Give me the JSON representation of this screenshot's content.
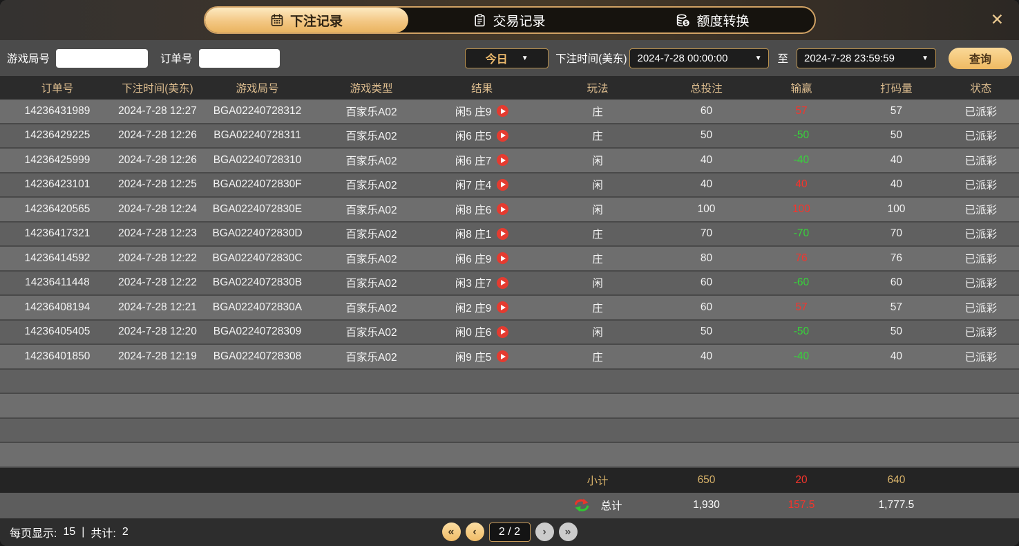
{
  "window": {
    "close_glyph": "✕"
  },
  "tabs": [
    {
      "label": "下注记录",
      "icon": "calendar-icon",
      "active": true
    },
    {
      "label": "交易记录",
      "icon": "clipboard-icon",
      "active": false
    },
    {
      "label": "额度转换",
      "icon": "coins-icon",
      "active": false
    }
  ],
  "filters": {
    "game_round_label": "游戏局号",
    "order_no_label": "订单号",
    "game_round_value": "",
    "order_no_value": "",
    "preset_value": "今日",
    "bet_time_label": "下注时间(美东)",
    "time_from": "2024-7-28 00:00:00",
    "to_label": "至",
    "time_to": "2024-7-28 23:59:59",
    "query_label": "查询",
    "dropdown_glyph": "▼"
  },
  "table": {
    "headers": [
      "订单号",
      "下注时间(美东)",
      "游戏局号",
      "游戏类型",
      "结果",
      "玩法",
      "总投注",
      "输赢",
      "打码量",
      "状态"
    ],
    "rows": [
      {
        "order_no": "14236431989",
        "bet_time": "2024-7-28 12:27",
        "round": "BGA02240728312",
        "game_type": "百家乐A02",
        "result": "闲5 庄9",
        "play": "庄",
        "total_bet": "60",
        "win_loss": "57",
        "turnover": "57",
        "status": "已派彩"
      },
      {
        "order_no": "14236429225",
        "bet_time": "2024-7-28 12:26",
        "round": "BGA02240728311",
        "game_type": "百家乐A02",
        "result": "闲6 庄5",
        "play": "庄",
        "total_bet": "50",
        "win_loss": "-50",
        "turnover": "50",
        "status": "已派彩"
      },
      {
        "order_no": "14236425999",
        "bet_time": "2024-7-28 12:26",
        "round": "BGA02240728310",
        "game_type": "百家乐A02",
        "result": "闲6 庄7",
        "play": "闲",
        "total_bet": "40",
        "win_loss": "-40",
        "turnover": "40",
        "status": "已派彩"
      },
      {
        "order_no": "14236423101",
        "bet_time": "2024-7-28 12:25",
        "round": "BGA0224072830F",
        "game_type": "百家乐A02",
        "result": "闲7 庄4",
        "play": "闲",
        "total_bet": "40",
        "win_loss": "40",
        "turnover": "40",
        "status": "已派彩"
      },
      {
        "order_no": "14236420565",
        "bet_time": "2024-7-28 12:24",
        "round": "BGA0224072830E",
        "game_type": "百家乐A02",
        "result": "闲8 庄6",
        "play": "闲",
        "total_bet": "100",
        "win_loss": "100",
        "turnover": "100",
        "status": "已派彩"
      },
      {
        "order_no": "14236417321",
        "bet_time": "2024-7-28 12:23",
        "round": "BGA0224072830D",
        "game_type": "百家乐A02",
        "result": "闲8 庄1",
        "play": "庄",
        "total_bet": "70",
        "win_loss": "-70",
        "turnover": "70",
        "status": "已派彩"
      },
      {
        "order_no": "14236414592",
        "bet_time": "2024-7-28 12:22",
        "round": "BGA0224072830C",
        "game_type": "百家乐A02",
        "result": "闲6 庄9",
        "play": "庄",
        "total_bet": "80",
        "win_loss": "76",
        "turnover": "76",
        "status": "已派彩"
      },
      {
        "order_no": "14236411448",
        "bet_time": "2024-7-28 12:22",
        "round": "BGA0224072830B",
        "game_type": "百家乐A02",
        "result": "闲3 庄7",
        "play": "闲",
        "total_bet": "60",
        "win_loss": "-60",
        "turnover": "60",
        "status": "已派彩"
      },
      {
        "order_no": "14236408194",
        "bet_time": "2024-7-28 12:21",
        "round": "BGA0224072830A",
        "game_type": "百家乐A02",
        "result": "闲2 庄9",
        "play": "庄",
        "total_bet": "60",
        "win_loss": "57",
        "turnover": "57",
        "status": "已派彩"
      },
      {
        "order_no": "14236405405",
        "bet_time": "2024-7-28 12:20",
        "round": "BGA02240728309",
        "game_type": "百家乐A02",
        "result": "闲0 庄6",
        "play": "闲",
        "total_bet": "50",
        "win_loss": "-50",
        "turnover": "50",
        "status": "已派彩"
      },
      {
        "order_no": "14236401850",
        "bet_time": "2024-7-28 12:19",
        "round": "BGA02240728308",
        "game_type": "百家乐A02",
        "result": "闲9 庄5",
        "play": "庄",
        "total_bet": "40",
        "win_loss": "-40",
        "turnover": "40",
        "status": "已派彩"
      }
    ],
    "empty_row_count": 4,
    "subtotal": {
      "label": "小计",
      "total_bet": "650",
      "win_loss": "20",
      "turnover": "640"
    },
    "total": {
      "label": "总计",
      "total_bet": "1,930",
      "win_loss": "157.5",
      "turnover": "1,777.5"
    }
  },
  "footer": {
    "page_size_label": "每页显示:",
    "page_size": "15",
    "separator": "|",
    "total_label": "共计:",
    "total_count": "2",
    "page_indicator": "2 / 2",
    "first_glyph": "«",
    "prev_glyph": "‹",
    "next_glyph": "›",
    "last_glyph": "»"
  },
  "colors": {
    "accent_gold": "#edb863",
    "header_text_gold": "#ddbd8f",
    "win_positive_red": "#f5342c",
    "win_negative_green": "#37d43a",
    "play_button_red": "#e43b30"
  }
}
